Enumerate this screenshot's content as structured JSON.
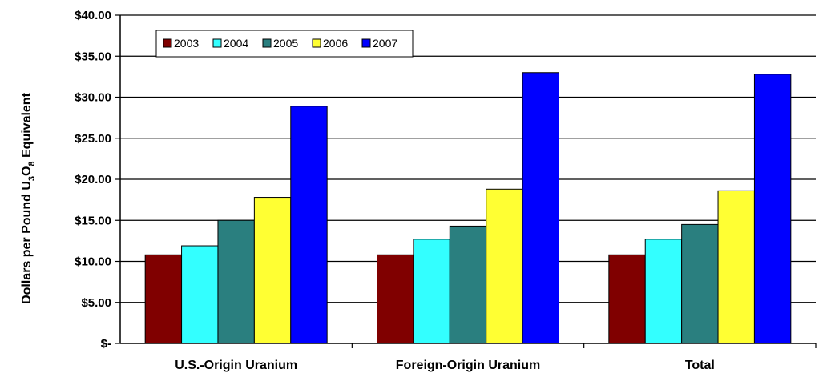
{
  "chart_data": {
    "type": "bar",
    "title": "",
    "xlabel": "",
    "ylabel": {
      "prefix": "Dollars per Pound U",
      "sub1": "3",
      "mid": "O",
      "sub2": "8",
      "suffix": " Equivalent"
    },
    "ylim": [
      0,
      40
    ],
    "yticks": [
      0,
      5,
      10,
      15,
      20,
      25,
      30,
      35,
      40
    ],
    "ytick_labels": [
      "$-",
      "$5.00",
      "$10.00",
      "$15.00",
      "$20.00",
      "$25.00",
      "$30.00",
      "$35.00",
      "$40.00"
    ],
    "grid": true,
    "legend_position": "top-left",
    "categories": [
      "U.S.-Origin Uranium",
      "Foreign-Origin Uranium",
      "Total"
    ],
    "series": [
      {
        "name": "2003",
        "color": "#800000",
        "values": [
          10.8,
          10.8,
          10.8
        ]
      },
      {
        "name": "2004",
        "color": "#33FFFF",
        "values": [
          11.9,
          12.7,
          12.7
        ]
      },
      {
        "name": "2005",
        "color": "#2A7F7F",
        "values": [
          15.0,
          14.3,
          14.5
        ]
      },
      {
        "name": "2006",
        "color": "#FFFF33",
        "values": [
          17.8,
          18.8,
          18.6
        ]
      },
      {
        "name": "2007",
        "color": "#0000FF",
        "values": [
          28.9,
          33.0,
          32.8
        ]
      }
    ]
  }
}
